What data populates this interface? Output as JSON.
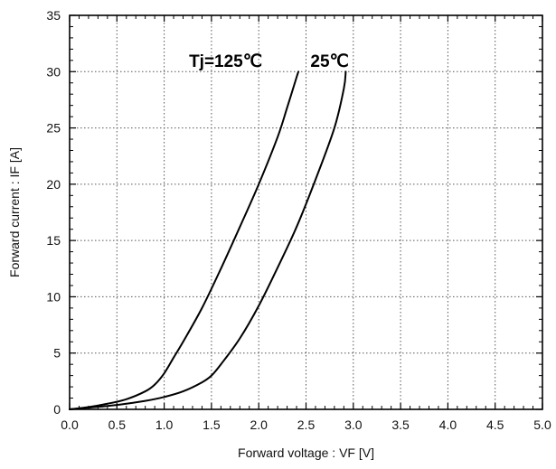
{
  "chart_data": {
    "type": "line",
    "xlabel": "Forward voltage  :  VF [V]",
    "ylabel": "Forward current  : IF  [A]",
    "xlim": [
      0.0,
      5.0
    ],
    "ylim": [
      0,
      35
    ],
    "x_ticks": [
      "0.0",
      "0.5",
      "1.0",
      "1.5",
      "2.0",
      "2.5",
      "3.0",
      "3.5",
      "4.0",
      "4.5",
      "5.0"
    ],
    "y_ticks": [
      "0",
      "5",
      "10",
      "15",
      "20",
      "25",
      "30",
      "35"
    ],
    "grid": true,
    "annotations": [
      {
        "text": "Tj=125℃",
        "x": 1.65,
        "y": 31.0
      },
      {
        "text": "25℃",
        "x": 2.75,
        "y": 31.0
      }
    ],
    "series": [
      {
        "x": [
          0.0,
          0.2,
          0.4,
          0.6,
          0.8,
          0.9,
          1.0,
          1.1,
          1.2,
          1.4,
          1.6,
          1.8,
          2.0,
          2.2,
          2.3,
          2.4,
          2.42
        ],
        "y": [
          0.0,
          0.2,
          0.5,
          0.9,
          1.6,
          2.2,
          3.2,
          4.6,
          6.0,
          9.0,
          12.5,
          16.2,
          20.0,
          24.2,
          26.8,
          29.5,
          30.0
        ]
      },
      {
        "x": [
          0.0,
          0.2,
          0.4,
          0.6,
          0.8,
          1.0,
          1.2,
          1.4,
          1.5,
          1.6,
          1.8,
          2.0,
          2.2,
          2.4,
          2.6,
          2.8,
          2.9,
          2.92
        ],
        "y": [
          0.0,
          0.15,
          0.3,
          0.5,
          0.75,
          1.1,
          1.6,
          2.4,
          3.0,
          4.0,
          6.3,
          9.2,
          12.6,
          16.2,
          20.4,
          25.0,
          28.5,
          30.0
        ]
      }
    ],
    "colors": {
      "line": "#000000",
      "grid": "#555555",
      "frame": "#000000"
    }
  }
}
